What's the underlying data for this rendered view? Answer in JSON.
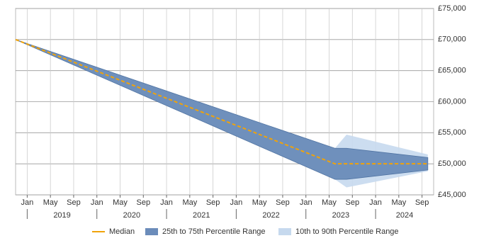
{
  "chart_data": {
    "type": "line",
    "x": [
      "2018-11",
      "2023-06",
      "2023-08",
      "2024-10"
    ],
    "series": [
      {
        "name": "Median",
        "color": "#f0a30a",
        "values": [
          70000,
          50000,
          50000,
          50000
        ]
      }
    ],
    "bands": [
      {
        "name": "10th to 90th Percentile Range",
        "color": "#c6d9ee",
        "low": [
          70000,
          47500,
          46200,
          48800
        ],
        "high": [
          70000,
          52500,
          54700,
          51500
        ]
      },
      {
        "name": "25th to 75th Percentile Range",
        "color": "#6b8cba",
        "low": [
          70000,
          47500,
          47500,
          49000
        ],
        "high": [
          70000,
          52500,
          52500,
          51000
        ]
      }
    ],
    "legend_order": [
      0,
      1,
      0
    ],
    "xlim": [
      "2018-11",
      "2024-11"
    ],
    "xticks": [
      {
        "value": "2019-01",
        "label": "Jan"
      },
      {
        "value": "2019-05",
        "label": "May"
      },
      {
        "value": "2019-09",
        "label": "Sep"
      },
      {
        "value": "2020-01",
        "label": "Jan"
      },
      {
        "value": "2020-05",
        "label": "May"
      },
      {
        "value": "2020-09",
        "label": "Sep"
      },
      {
        "value": "2021-01",
        "label": "Jan"
      },
      {
        "value": "2021-05",
        "label": "May"
      },
      {
        "value": "2021-09",
        "label": "Sep"
      },
      {
        "value": "2022-01",
        "label": "Jan"
      },
      {
        "value": "2022-05",
        "label": "May"
      },
      {
        "value": "2022-09",
        "label": "Sep"
      },
      {
        "value": "2023-01",
        "label": "Jan"
      },
      {
        "value": "2023-05",
        "label": "May"
      },
      {
        "value": "2023-09",
        "label": "Sep"
      },
      {
        "value": "2024-01",
        "label": "Jan"
      },
      {
        "value": "2024-05",
        "label": "May"
      },
      {
        "value": "2024-09",
        "label": "Sep"
      }
    ],
    "years": [
      "2019",
      "2020",
      "2021",
      "2022",
      "2023",
      "2024"
    ],
    "ylim": [
      45000,
      75000
    ],
    "yticks": [
      {
        "value": 45000,
        "label": "£45,000"
      },
      {
        "value": 50000,
        "label": "£50,000"
      },
      {
        "value": 55000,
        "label": "£55,000"
      },
      {
        "value": 60000,
        "label": "£60,000"
      },
      {
        "value": 65000,
        "label": "£65,000"
      },
      {
        "value": 70000,
        "label": "£70,000"
      },
      {
        "value": 75000,
        "label": "£75,000"
      }
    ],
    "grid": true
  }
}
